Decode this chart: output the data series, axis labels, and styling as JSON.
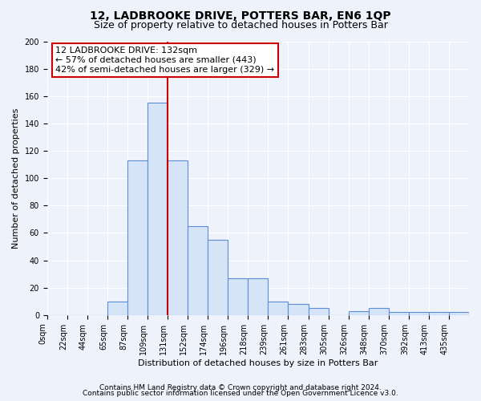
{
  "title": "12, LADBROOKE DRIVE, POTTERS BAR, EN6 1QP",
  "subtitle": "Size of property relative to detached houses in Potters Bar",
  "xlabel": "Distribution of detached houses by size in Potters Bar",
  "ylabel": "Number of detached properties",
  "bar_labels": [
    "0sqm",
    "22sqm",
    "44sqm",
    "65sqm",
    "87sqm",
    "109sqm",
    "131sqm",
    "152sqm",
    "174sqm",
    "196sqm",
    "218sqm",
    "239sqm",
    "261sqm",
    "283sqm",
    "305sqm",
    "326sqm",
    "348sqm",
    "370sqm",
    "392sqm",
    "413sqm",
    "435sqm"
  ],
  "bar_values": [
    0,
    0,
    0,
    10,
    113,
    155,
    113,
    65,
    55,
    27,
    27,
    10,
    8,
    5,
    0,
    3,
    5,
    2,
    2,
    2,
    2
  ],
  "bar_color": "#d6e4f7",
  "bar_edge_color": "#5b8dd9",
  "redline_index": 6,
  "annotation_text": "12 LADBROOKE DRIVE: 132sqm\n← 57% of detached houses are smaller (443)\n42% of semi-detached houses are larger (329) →",
  "annotation_box_facecolor": "#ffffff",
  "annotation_box_edgecolor": "#cc0000",
  "redline_color": "#cc0000",
  "ylim": [
    0,
    200
  ],
  "yticks": [
    0,
    20,
    40,
    60,
    80,
    100,
    120,
    140,
    160,
    180,
    200
  ],
  "footer_line1": "Contains HM Land Registry data © Crown copyright and database right 2024.",
  "footer_line2": "Contains public sector information licensed under the Open Government Licence v3.0.",
  "background_color": "#eef2fa",
  "grid_color": "#ffffff",
  "title_fontsize": 10,
  "subtitle_fontsize": 9,
  "axis_label_fontsize": 8,
  "tick_fontsize": 7,
  "annotation_fontsize": 8,
  "footer_fontsize": 6.5
}
